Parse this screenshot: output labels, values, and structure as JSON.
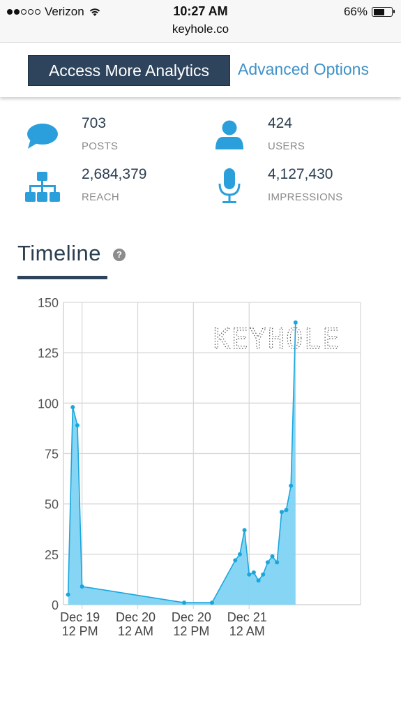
{
  "status_bar": {
    "carrier": "Verizon",
    "time": "10:27 AM",
    "battery": "66%",
    "battery_level": 0.66,
    "signal_bars_filled": 2,
    "signal_bars_total": 5
  },
  "url": "keyhole.co",
  "header": {
    "access_button": "Access More Analytics",
    "advanced_link": "Advanced Options"
  },
  "stats": {
    "posts": {
      "value": "703",
      "label": "POSTS"
    },
    "users": {
      "value": "424",
      "label": "USERS"
    },
    "reach": {
      "value": "2,684,379",
      "label": "REACH"
    },
    "impressions": {
      "value": "4,127,430",
      "label": "IMPRESSIONS"
    }
  },
  "colors": {
    "icon_blue": "#2a9fdc",
    "navy": "#2e445c",
    "link_blue": "#3f91c9",
    "series_line": "#1aa6dc",
    "series_fill": "#7fd3f3"
  },
  "timeline": {
    "title": "Timeline",
    "help": "?",
    "watermark": "KEYHOLE"
  },
  "chart_data": {
    "type": "area",
    "title": "",
    "xlabel": "",
    "ylabel": "",
    "ylim": [
      0,
      150
    ],
    "yticks": [
      0,
      25,
      50,
      75,
      100,
      125,
      150
    ],
    "xlim": [
      "2016-12-19 08:00",
      "2016-12-22 00:00"
    ],
    "xticks": [
      {
        "x": "2016-12-19 12:00",
        "label_line1": "Dec 19",
        "label_line2": "12 PM"
      },
      {
        "x": "2016-12-20 00:00",
        "label_line1": "Dec 20",
        "label_line2": "12 AM"
      },
      {
        "x": "2016-12-20 12:00",
        "label_line1": "Dec 20",
        "label_line2": "12 PM"
      },
      {
        "x": "2016-12-21 00:00",
        "label_line1": "Dec 21",
        "label_line2": "12 AM"
      }
    ],
    "grid": true,
    "legend": "none",
    "series": [
      {
        "x": [
          "2016-12-19 09:00",
          "2016-12-19 10:00",
          "2016-12-19 11:00",
          "2016-12-19 12:00",
          "2016-12-20 10:00",
          "2016-12-20 16:00",
          "2016-12-20 21:00",
          "2016-12-20 22:00",
          "2016-12-20 23:00",
          "2016-12-21 00:00",
          "2016-12-21 01:00",
          "2016-12-21 02:00",
          "2016-12-21 03:00",
          "2016-12-21 04:00",
          "2016-12-21 05:00",
          "2016-12-21 06:00",
          "2016-12-21 07:00",
          "2016-12-21 08:00",
          "2016-12-21 09:00",
          "2016-12-21 10:00"
        ],
        "values": [
          5,
          98,
          89,
          9,
          1,
          1,
          22,
          25,
          37,
          15,
          16,
          12,
          15,
          21,
          24,
          21,
          46,
          47,
          59,
          140
        ]
      }
    ]
  }
}
